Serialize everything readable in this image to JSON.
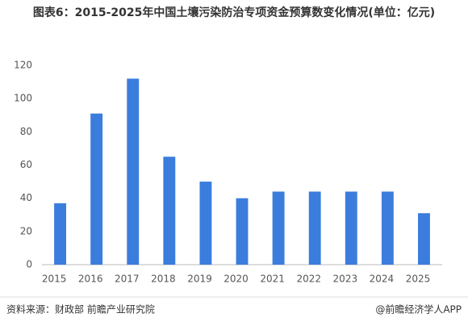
{
  "chart_data": {
    "type": "bar",
    "title": "图表6：2015-2025年中国土壤污染防治专项资金预算数变化情况(单位：亿元)",
    "categories": [
      "2015",
      "2016",
      "2017",
      "2018",
      "2019",
      "2020",
      "2021",
      "2022",
      "2023",
      "2024",
      "2025"
    ],
    "values": [
      37,
      91,
      112,
      65,
      50,
      40,
      44,
      44,
      44,
      44,
      31
    ],
    "color": "#3b7ddd",
    "ylim": [
      0,
      120
    ],
    "yticks": [
      0,
      20,
      40,
      60,
      80,
      100,
      120
    ],
    "grid": false,
    "source": "资料来源：财政部 前瞻产业研究院",
    "credit": "@前瞻经济学人APP"
  }
}
